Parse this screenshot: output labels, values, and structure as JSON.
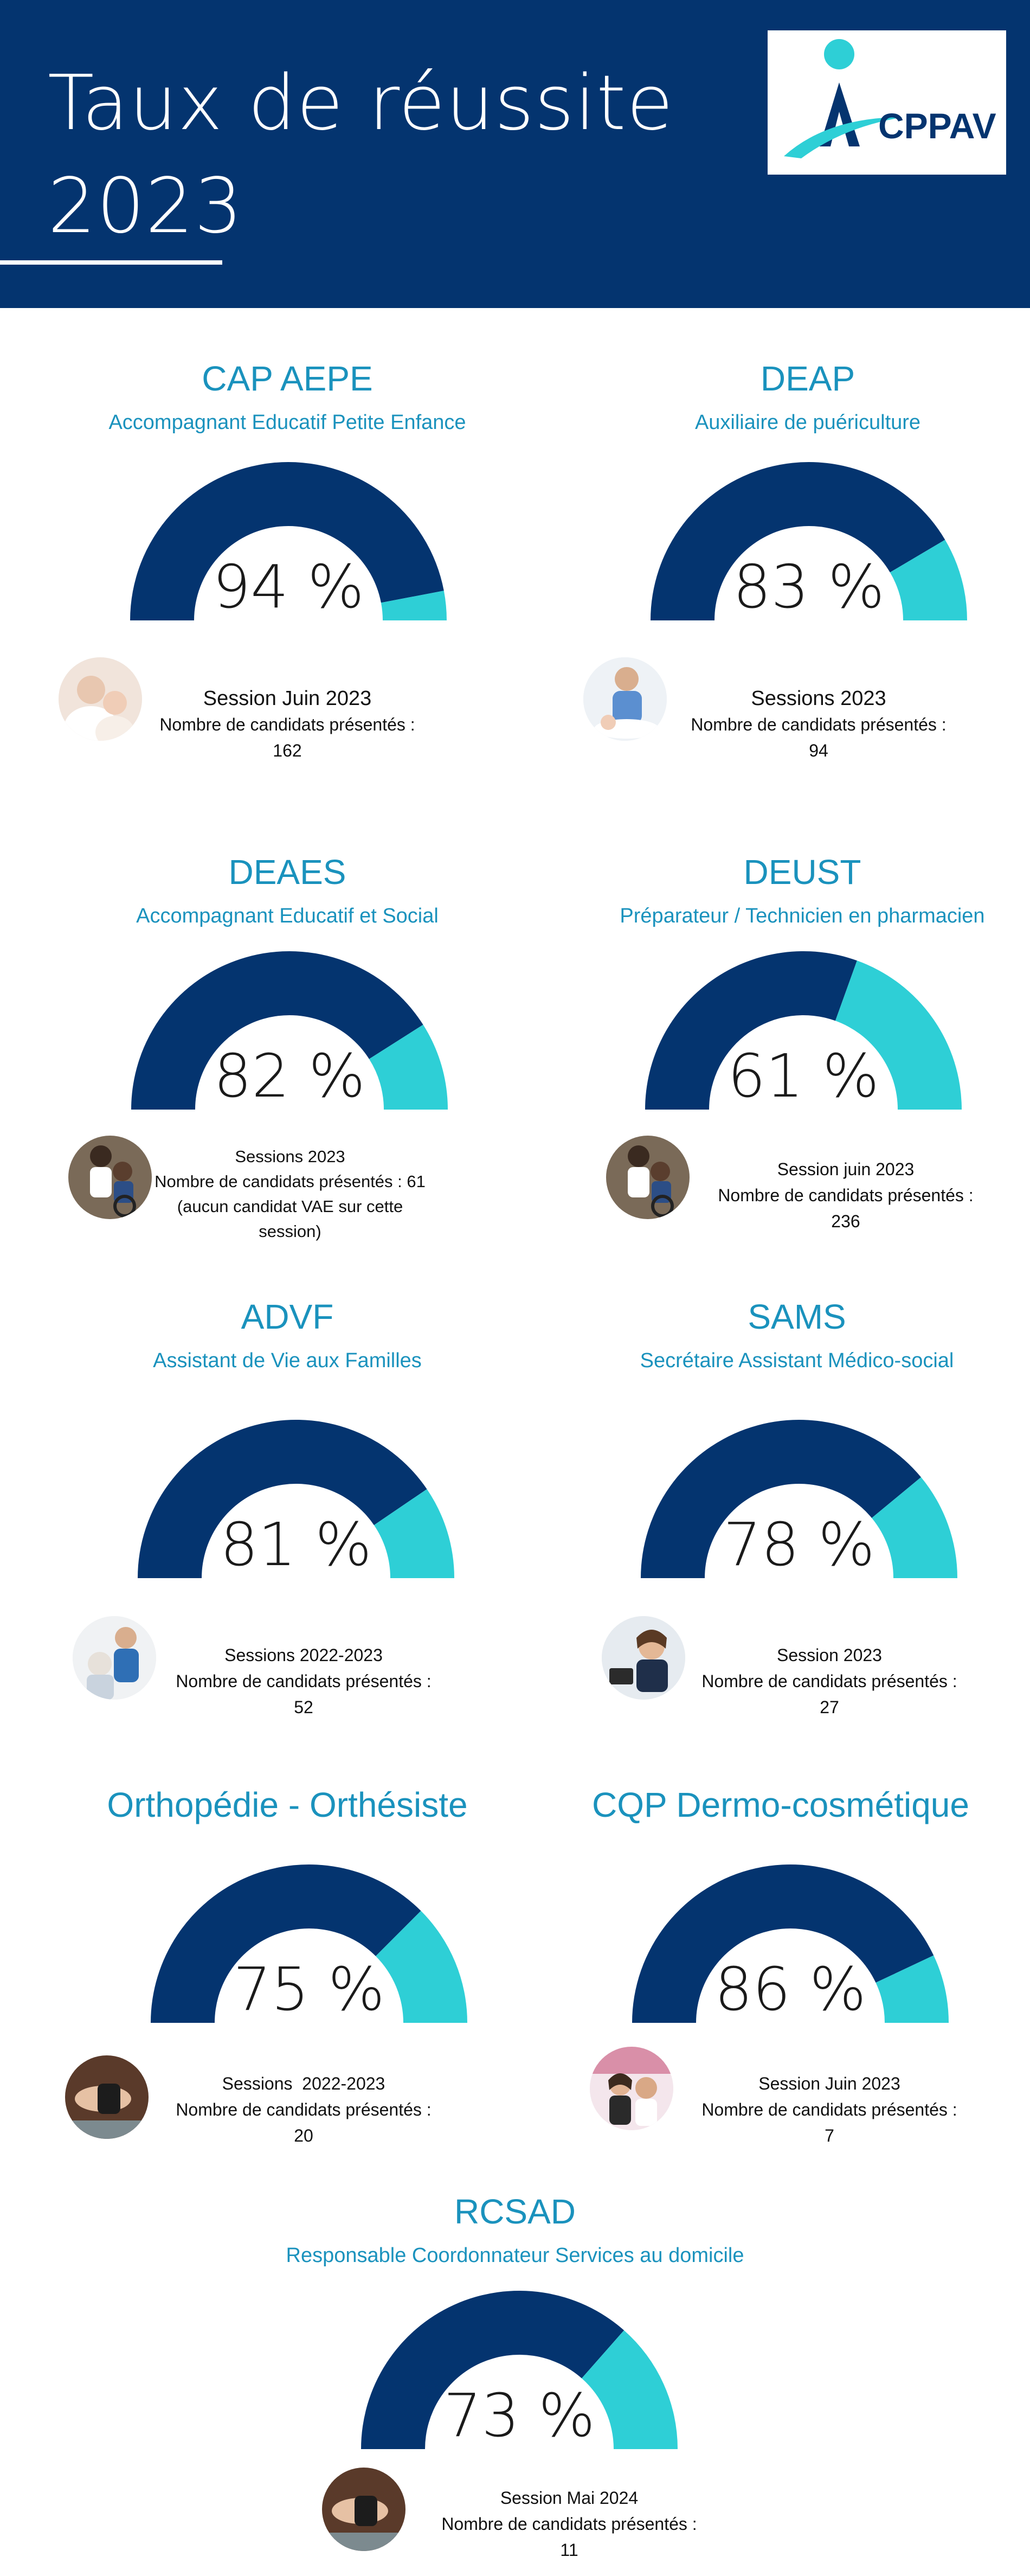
{
  "header": {
    "title_line1": "Taux de réussite",
    "title_line2": "2023",
    "logo_text": "CPPAV"
  },
  "colors": {
    "navy": "#04346f",
    "teal": "#2ecfd6",
    "title_blue": "#1a92bd"
  },
  "chart_data": [
    {
      "type": "gauge",
      "title": "CAP AEPE",
      "subtitle": "Accompagnant Educatif Petite Enfance",
      "value": 94,
      "value_label": "94 %",
      "max": 100,
      "session": [
        "Session Juin 2023",
        "Nombre de candidats présentés :",
        "162"
      ],
      "photo_icon": "mother-baby-photo"
    },
    {
      "type": "gauge",
      "title": "DEAP",
      "subtitle": "Auxiliaire de puériculture",
      "value": 83,
      "value_label": "83 %",
      "max": 100,
      "session": [
        "Sessions 2023",
        "Nombre de candidats présentés :",
        "94"
      ],
      "photo_icon": "nurse-baby-photo"
    },
    {
      "type": "gauge",
      "title": "DEAES",
      "subtitle": "Accompagnant Educatif et Social",
      "value": 82,
      "value_label": "82 %",
      "max": 100,
      "session": [
        "Sessions 2023",
        "Nombre de candidats présentés : 61",
        "(aucun candidat VAE sur cette",
        "session)"
      ],
      "photo_icon": "caregiver-wheelchair-photo"
    },
    {
      "type": "gauge",
      "title": "DEUST",
      "subtitle": "Préparateur / Technicien en pharmacien",
      "value": 61,
      "value_label": "61 %",
      "max": 100,
      "session": [
        "Session juin 2023",
        "Nombre de candidats présentés :",
        "236"
      ],
      "photo_icon": "caregiver-wheelchair-photo"
    },
    {
      "type": "gauge",
      "title": "ADVF",
      "subtitle": "Assistant de Vie aux Familles",
      "value": 81,
      "value_label": "81 %",
      "max": 100,
      "session": [
        "Sessions 2022-2023",
        "Nombre de candidats présentés :",
        "52"
      ],
      "photo_icon": "care-assistant-photo"
    },
    {
      "type": "gauge",
      "title": "SAMS",
      "subtitle": "Secrétaire Assistant Médico-social",
      "value": 78,
      "value_label": "78 %",
      "max": 100,
      "session": [
        "Session 2023",
        "Nombre de candidats présentés :",
        "27"
      ],
      "photo_icon": "medical-secretary-photo"
    },
    {
      "type": "gauge",
      "title": "Orthopédie - Orthésiste",
      "subtitle": "",
      "value": 75,
      "value_label": "75 %",
      "max": 100,
      "session": [
        "Sessions  2022-2023",
        "Nombre de candidats présentés :",
        "20"
      ],
      "photo_icon": "orthosis-photo"
    },
    {
      "type": "gauge",
      "title": "CQP Dermo-cosmétique",
      "subtitle": "",
      "value": 86,
      "value_label": "86 %",
      "max": 100,
      "session": [
        "Session Juin 2023",
        "Nombre de candidats présentés :",
        "7"
      ],
      "photo_icon": "pharmacy-advisor-photo"
    },
    {
      "type": "gauge",
      "title": "RCSAD",
      "subtitle": "Responsable Coordonnateur Services au domicile",
      "value": 73,
      "value_label": "73 %",
      "max": 100,
      "session": [
        "Session Mai 2024",
        "Nombre de candidats présentés :",
        "11"
      ],
      "photo_icon": "orthosis-photo"
    }
  ]
}
